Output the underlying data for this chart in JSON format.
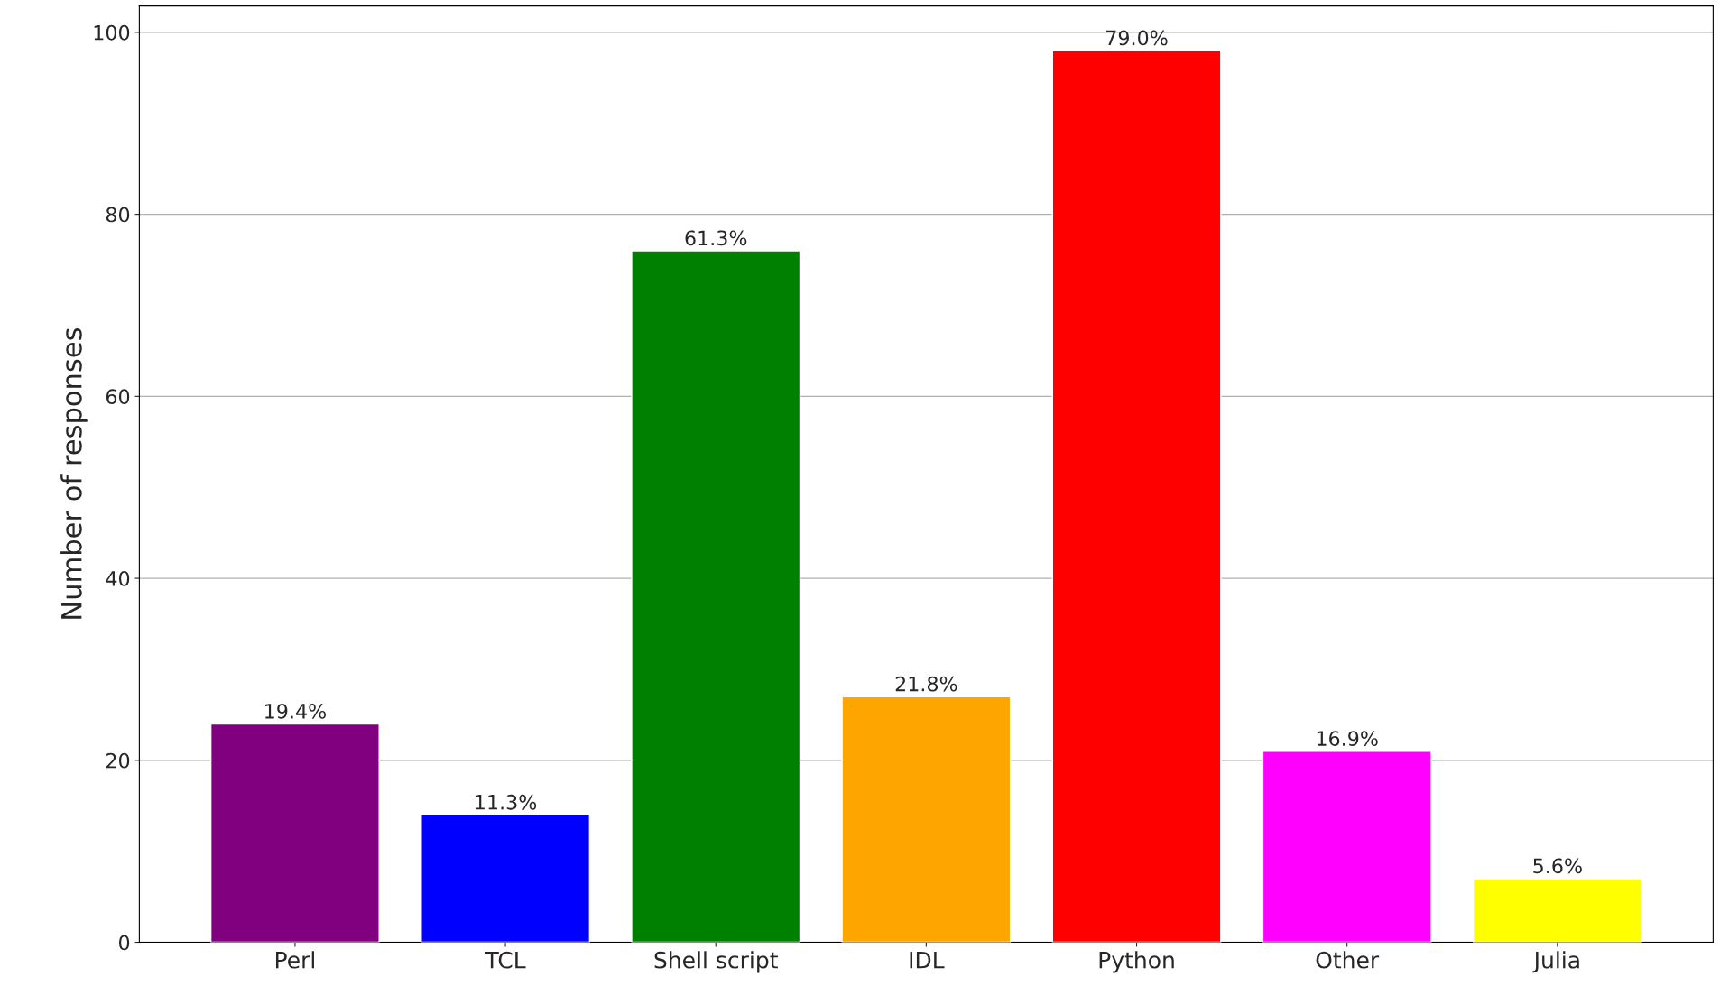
{
  "chart_data": {
    "type": "bar",
    "ylabel": "Number of responses",
    "categories": [
      "Perl",
      "TCL",
      "Shell script",
      "IDL",
      "Python",
      "Other",
      "Julia"
    ],
    "values": [
      24,
      14,
      76,
      27,
      98,
      21,
      7
    ],
    "colors": [
      "#800080",
      "#0000ff",
      "#008000",
      "#ffa500",
      "#ff0000",
      "#ff00ff",
      "#ffff00"
    ],
    "annotations": [
      {
        "text": "19.4%",
        "x": "Perl",
        "y": 24
      },
      {
        "text": "11.3%",
        "x": "TCL",
        "y": 14
      },
      {
        "text": "61.3%",
        "x": "Shell script",
        "y": 76
      },
      {
        "text": "21.8%",
        "x": "IDL",
        "y": 27
      },
      {
        "text": "79.0%",
        "x": "Python",
        "y": 98
      },
      {
        "text": "16.9%",
        "x": "Other",
        "y": 21
      },
      {
        "text": "5.6%",
        "x": "Julia",
        "y": 7
      }
    ],
    "ylim": [
      0,
      102.9
    ],
    "yticks": [
      0,
      20,
      40,
      60,
      80,
      100
    ],
    "grid": "y"
  }
}
